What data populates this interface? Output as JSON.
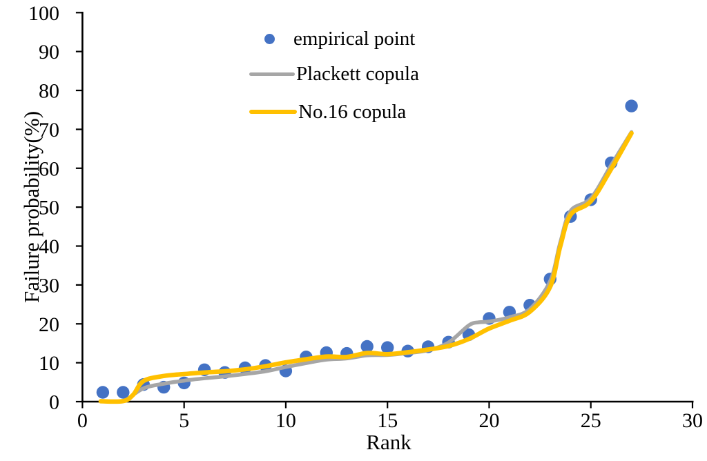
{
  "chart_data": {
    "type": "scatter",
    "title": "",
    "xlabel": "Rank",
    "ylabel": "Failure probability(%)",
    "xlim": [
      0,
      30
    ],
    "ylim": [
      0,
      100
    ],
    "x_ticks": [
      0,
      5,
      10,
      15,
      20,
      25,
      30
    ],
    "y_ticks": [
      0,
      10,
      20,
      30,
      40,
      50,
      60,
      70,
      80,
      90,
      100
    ],
    "grid": false,
    "legend_position": "top-center-inside",
    "axis_color": "#000000",
    "series": [
      {
        "name": "empirical point",
        "type": "scatter",
        "color": "#4472C4",
        "x": [
          1,
          2,
          3,
          4,
          5,
          6,
          7,
          8,
          9,
          10,
          11,
          12,
          13,
          14,
          15,
          16,
          17,
          18,
          19,
          20,
          21,
          22,
          23,
          24,
          25,
          26,
          27
        ],
        "y": [
          2.4,
          2.4,
          4.4,
          3.7,
          4.8,
          8.2,
          7.5,
          8.7,
          9.3,
          7.9,
          11.5,
          12.6,
          12.4,
          14.2,
          13.9,
          13.0,
          14.1,
          15.3,
          17.2,
          21.4,
          23.0,
          24.8,
          31.5,
          47.6,
          51.9,
          61.4,
          76.0
        ]
      },
      {
        "name": "Plackett copula",
        "type": "line",
        "color": "#A6A6A6",
        "x": [
          2.1,
          3,
          4,
          5,
          6,
          7,
          8,
          9,
          10,
          11,
          12,
          13,
          14,
          15,
          16,
          17,
          18,
          19,
          19.5,
          20,
          21,
          22,
          23,
          23.5,
          24,
          25,
          26,
          27
        ],
        "y": [
          0.2,
          3.4,
          4.6,
          5.4,
          6.0,
          6.5,
          7.1,
          7.8,
          8.9,
          9.9,
          10.8,
          11.1,
          11.9,
          12.0,
          12.5,
          13.2,
          15.2,
          19.6,
          20.4,
          20.6,
          21.7,
          23.8,
          31.0,
          41.0,
          49.0,
          52.3,
          60.8,
          69.3
        ]
      },
      {
        "name": "No.16 copula",
        "type": "line",
        "color": "#FFC000",
        "x": [
          0.9,
          2,
          2.5,
          3,
          4,
          5,
          6,
          7,
          8,
          9,
          10,
          11,
          12,
          13,
          14,
          15,
          16,
          17,
          18,
          19,
          20,
          21,
          22,
          23,
          23.5,
          24,
          25,
          26,
          27
        ],
        "y": [
          0.1,
          0.15,
          1.8,
          5.3,
          6.6,
          7.1,
          7.5,
          7.8,
          8.3,
          9.1,
          10.1,
          10.9,
          11.6,
          11.5,
          12.5,
          12.2,
          12.7,
          13.4,
          14.3,
          16.1,
          18.8,
          20.8,
          23.1,
          29.5,
          40.0,
          48.0,
          51.5,
          59.8,
          69.0
        ]
      }
    ]
  }
}
